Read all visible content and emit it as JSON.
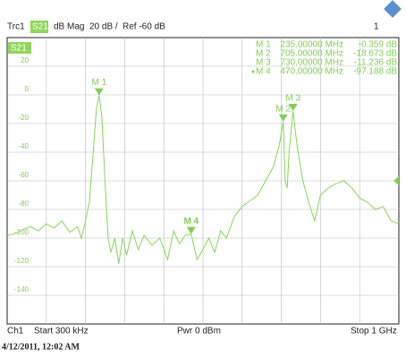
{
  "chart_data": {
    "type": "line",
    "trace_info": {
      "trace": "Trc1",
      "parameter": "S21",
      "format": "dB Mag",
      "scale": "20 dB /",
      "reference": "Ref -60 dB",
      "channel_index": "1"
    },
    "trace_label": "S21",
    "xlim": [
      0.3,
      1000
    ],
    "ylim": [
      -160,
      40
    ],
    "yticks": [
      20,
      0,
      -20,
      -40,
      -60,
      -80,
      -100,
      -120,
      -140
    ],
    "grid": true,
    "x": [
      0.3,
      20,
      40,
      60,
      80,
      100,
      120,
      140,
      160,
      180,
      190,
      200,
      210,
      220,
      228,
      235,
      242,
      250,
      258,
      265,
      275,
      285,
      295,
      305,
      320,
      335,
      350,
      370,
      390,
      410,
      425,
      440,
      455,
      470,
      485,
      500,
      515,
      530,
      545,
      560,
      580,
      600,
      620,
      640,
      660,
      680,
      695,
      705,
      710,
      715,
      720,
      730,
      740,
      755,
      770,
      785,
      800,
      820,
      840,
      860,
      880,
      900,
      920,
      940,
      960,
      980,
      1000
    ],
    "series": [
      {
        "name": "S21",
        "color": "#86d65a",
        "values": [
          -98,
          -97,
          -94,
          -92,
          -95,
          -90,
          -93,
          -88,
          -96,
          -92,
          -100,
          -88,
          -75,
          -40,
          -10,
          -0.359,
          -15,
          -60,
          -100,
          -110,
          -100,
          -118,
          -100,
          -112,
          -95,
          -108,
          -98,
          -105,
          -100,
          -115,
          -95,
          -104,
          -98,
          -97.188,
          -115,
          -108,
          -100,
          -110,
          -95,
          -100,
          -85,
          -78,
          -74,
          -70,
          -60,
          -50,
          -35,
          -18.673,
          -60,
          -65,
          -40,
          -11.236,
          -35,
          -60,
          -75,
          -88,
          -70,
          -65,
          -62,
          -60,
          -65,
          -72,
          -75,
          -80,
          -78,
          -88,
          -90
        ]
      }
    ],
    "markers": [
      {
        "name": "M 1",
        "x": 235,
        "value": -0.359,
        "x_label": "235.00000 MHz",
        "value_label": "-0.359 dB",
        "active": false
      },
      {
        "name": "M 2",
        "x": 705,
        "value": -18.673,
        "x_label": "705.00000 MHz",
        "value_label": "-18.673 dB",
        "active": false
      },
      {
        "name": "M 3",
        "x": 730,
        "value": -11.236,
        "x_label": "730.00000 MHz",
        "value_label": "-11.236 dB",
        "active": false
      },
      {
        "name": "M 4",
        "x": 470,
        "value": -97.188,
        "x_label": "470.00000 MHz",
        "value_label": "-97.188 dB",
        "active": true
      }
    ],
    "reference_value": -60,
    "footer": {
      "channel": "Ch1",
      "start": "Start 300 kHz",
      "power": "Pwr 0 dBm",
      "stop": "Stop 1 GHz"
    },
    "timestamp": "4/12/2011, 12:02 AM"
  }
}
